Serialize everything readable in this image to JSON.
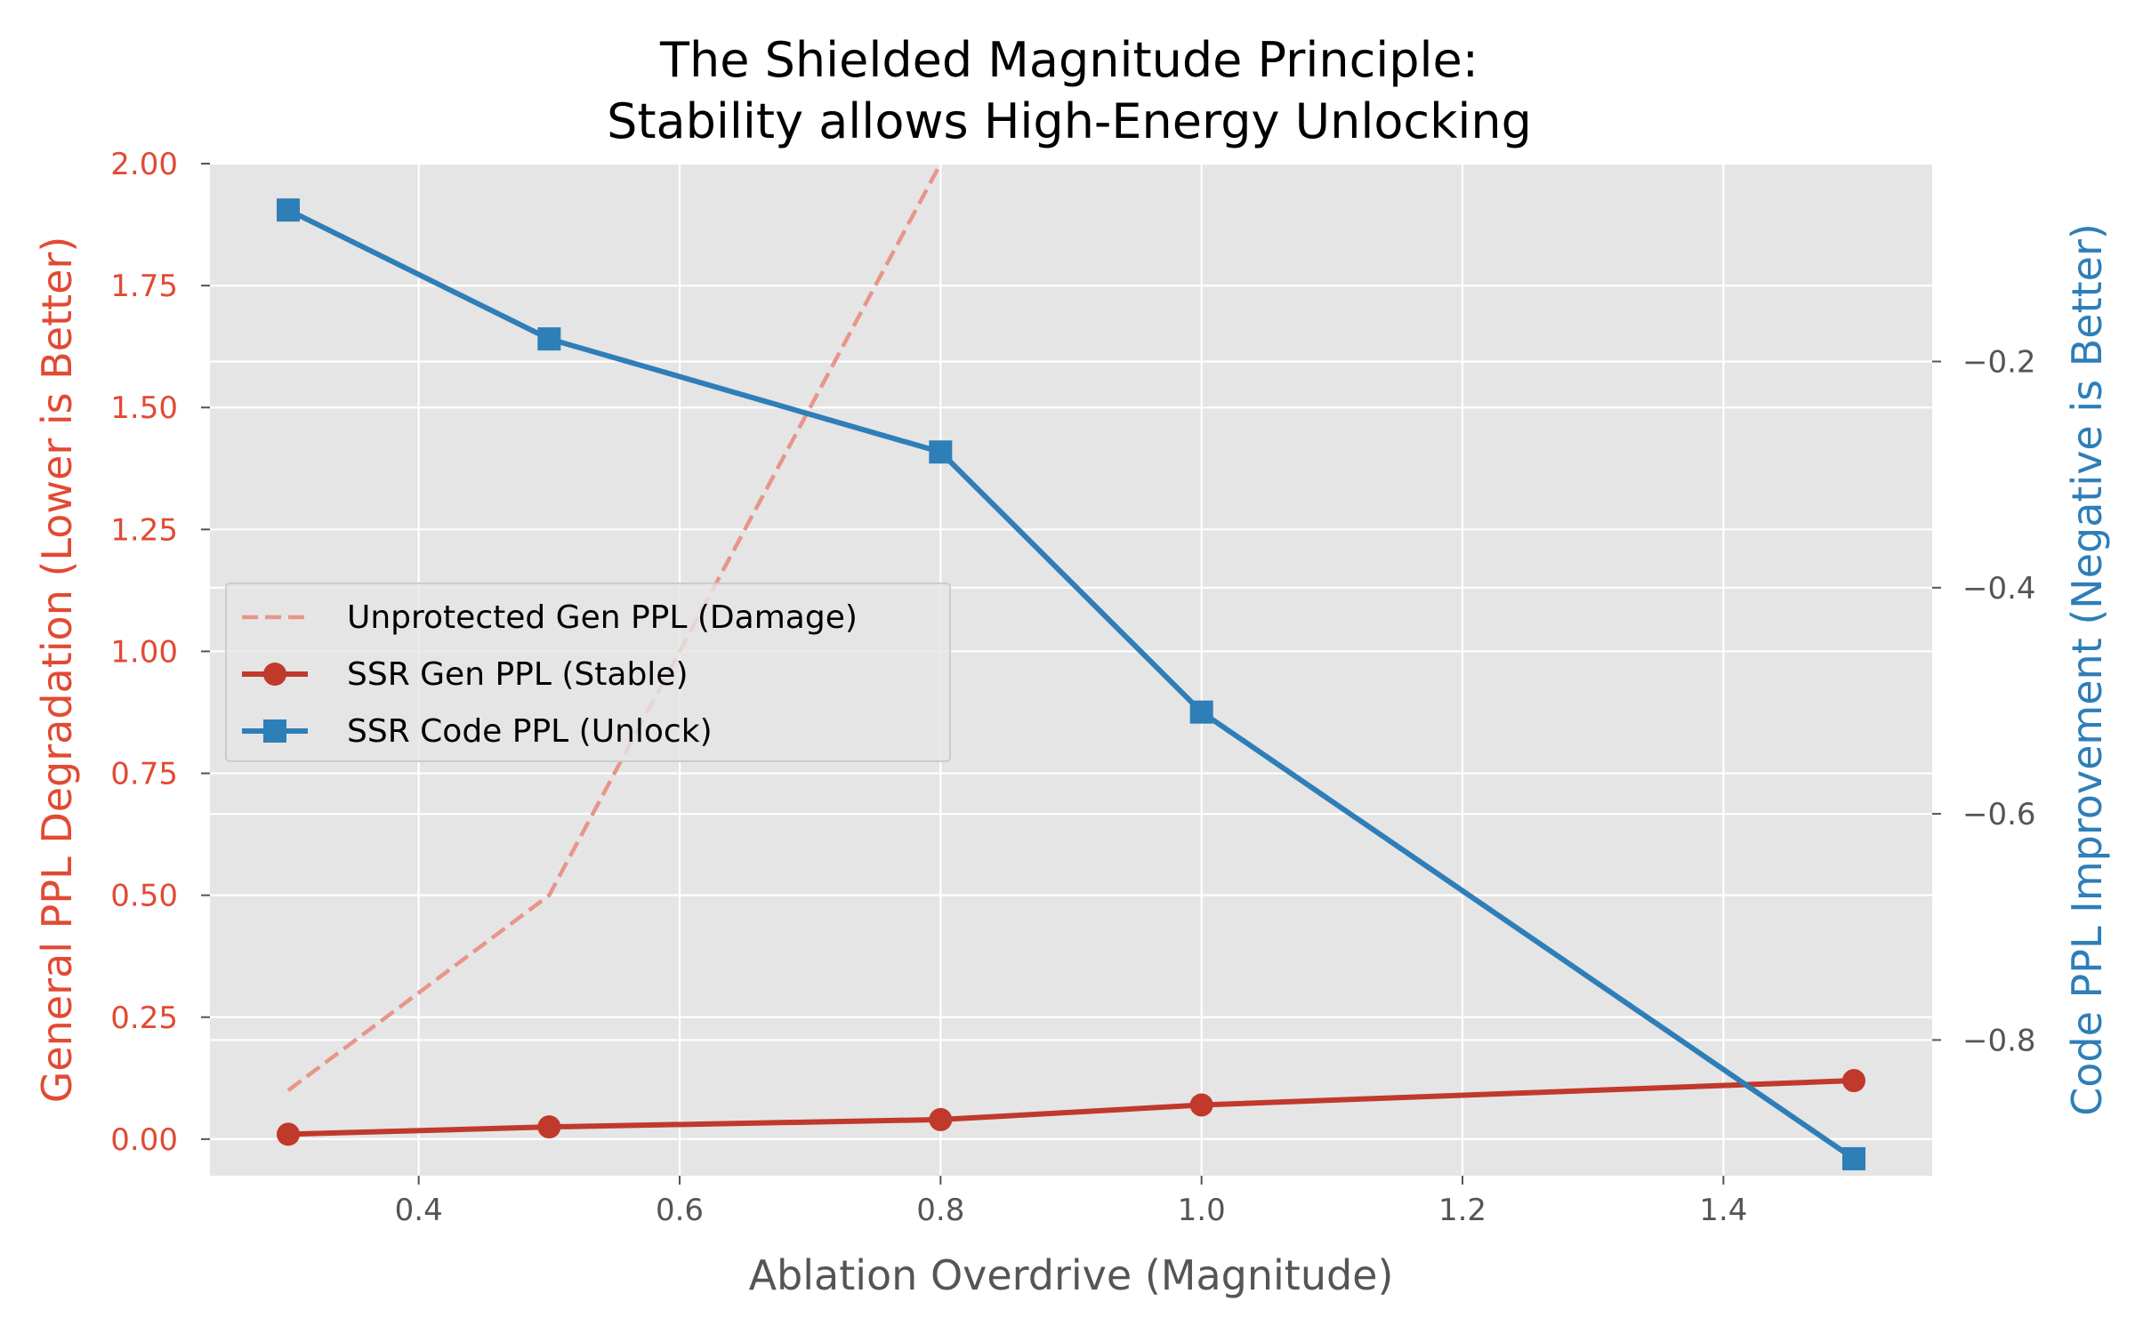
{
  "chart_data": {
    "type": "line",
    "title_lines": [
      "The Shielded Magnitude Principle:",
      "Stability allows High-Energy Unlocking"
    ],
    "xlabel": "Ablation Overdrive (Magnitude)",
    "ylabel_left": "General PPL Degradation (Lower is Better)",
    "ylabel_right": "Code PPL Improvement (Negative is Better)",
    "xlim": [
      0.24,
      1.56
    ],
    "ylim_left": [
      -0.075,
      2.0
    ],
    "ylim_right": [
      -0.92,
      -0.025
    ],
    "x_ticks": [
      0.4,
      0.6,
      0.8,
      1.0,
      1.2,
      1.4
    ],
    "x_tick_labels": [
      "0.4",
      "0.6",
      "0.8",
      "1.0",
      "1.2",
      "1.4"
    ],
    "y_left_ticks": [
      0.0,
      0.25,
      0.5,
      0.75,
      1.0,
      1.25,
      1.5,
      1.75,
      2.0
    ],
    "y_left_tick_labels": [
      "0.00",
      "0.25",
      "0.50",
      "0.75",
      "1.00",
      "1.25",
      "1.50",
      "1.75",
      "2.00"
    ],
    "y_right_ticks": [
      -0.2,
      -0.4,
      -0.6,
      -0.8
    ],
    "y_right_tick_labels": [
      "−0.2",
      "−0.4",
      "−0.6",
      "−0.8"
    ],
    "colors": {
      "left_axis": "#e24a33",
      "right_axis": "#2e7eb8",
      "tick_label": "#555555",
      "plot_bg": "#e5e5e5",
      "grid": "#ffffff"
    },
    "series": [
      {
        "name": "Unprotected Gen PPL (Damage)",
        "axis": "left",
        "style": "dashed",
        "color": "#e8958a",
        "x": [
          0.3,
          0.5,
          0.8
        ],
        "y": [
          0.1,
          0.5,
          2.0
        ]
      },
      {
        "name": "SSR Gen PPL (Stable)",
        "axis": "left",
        "style": "solid",
        "marker": "circle",
        "color": "#c0392b",
        "x": [
          0.3,
          0.5,
          0.8,
          1.0,
          1.5
        ],
        "y": [
          0.01,
          0.025,
          0.04,
          0.07,
          0.12
        ]
      },
      {
        "name": "SSR Code PPL (Unlock)",
        "axis": "right",
        "style": "solid",
        "marker": "square",
        "color": "#2e7eb8",
        "x": [
          0.3,
          0.5,
          0.8,
          1.0,
          1.5
        ],
        "y": [
          -0.066,
          -0.18,
          -0.28,
          -0.51,
          -0.905
        ]
      }
    ],
    "legend_position": "center-left"
  }
}
